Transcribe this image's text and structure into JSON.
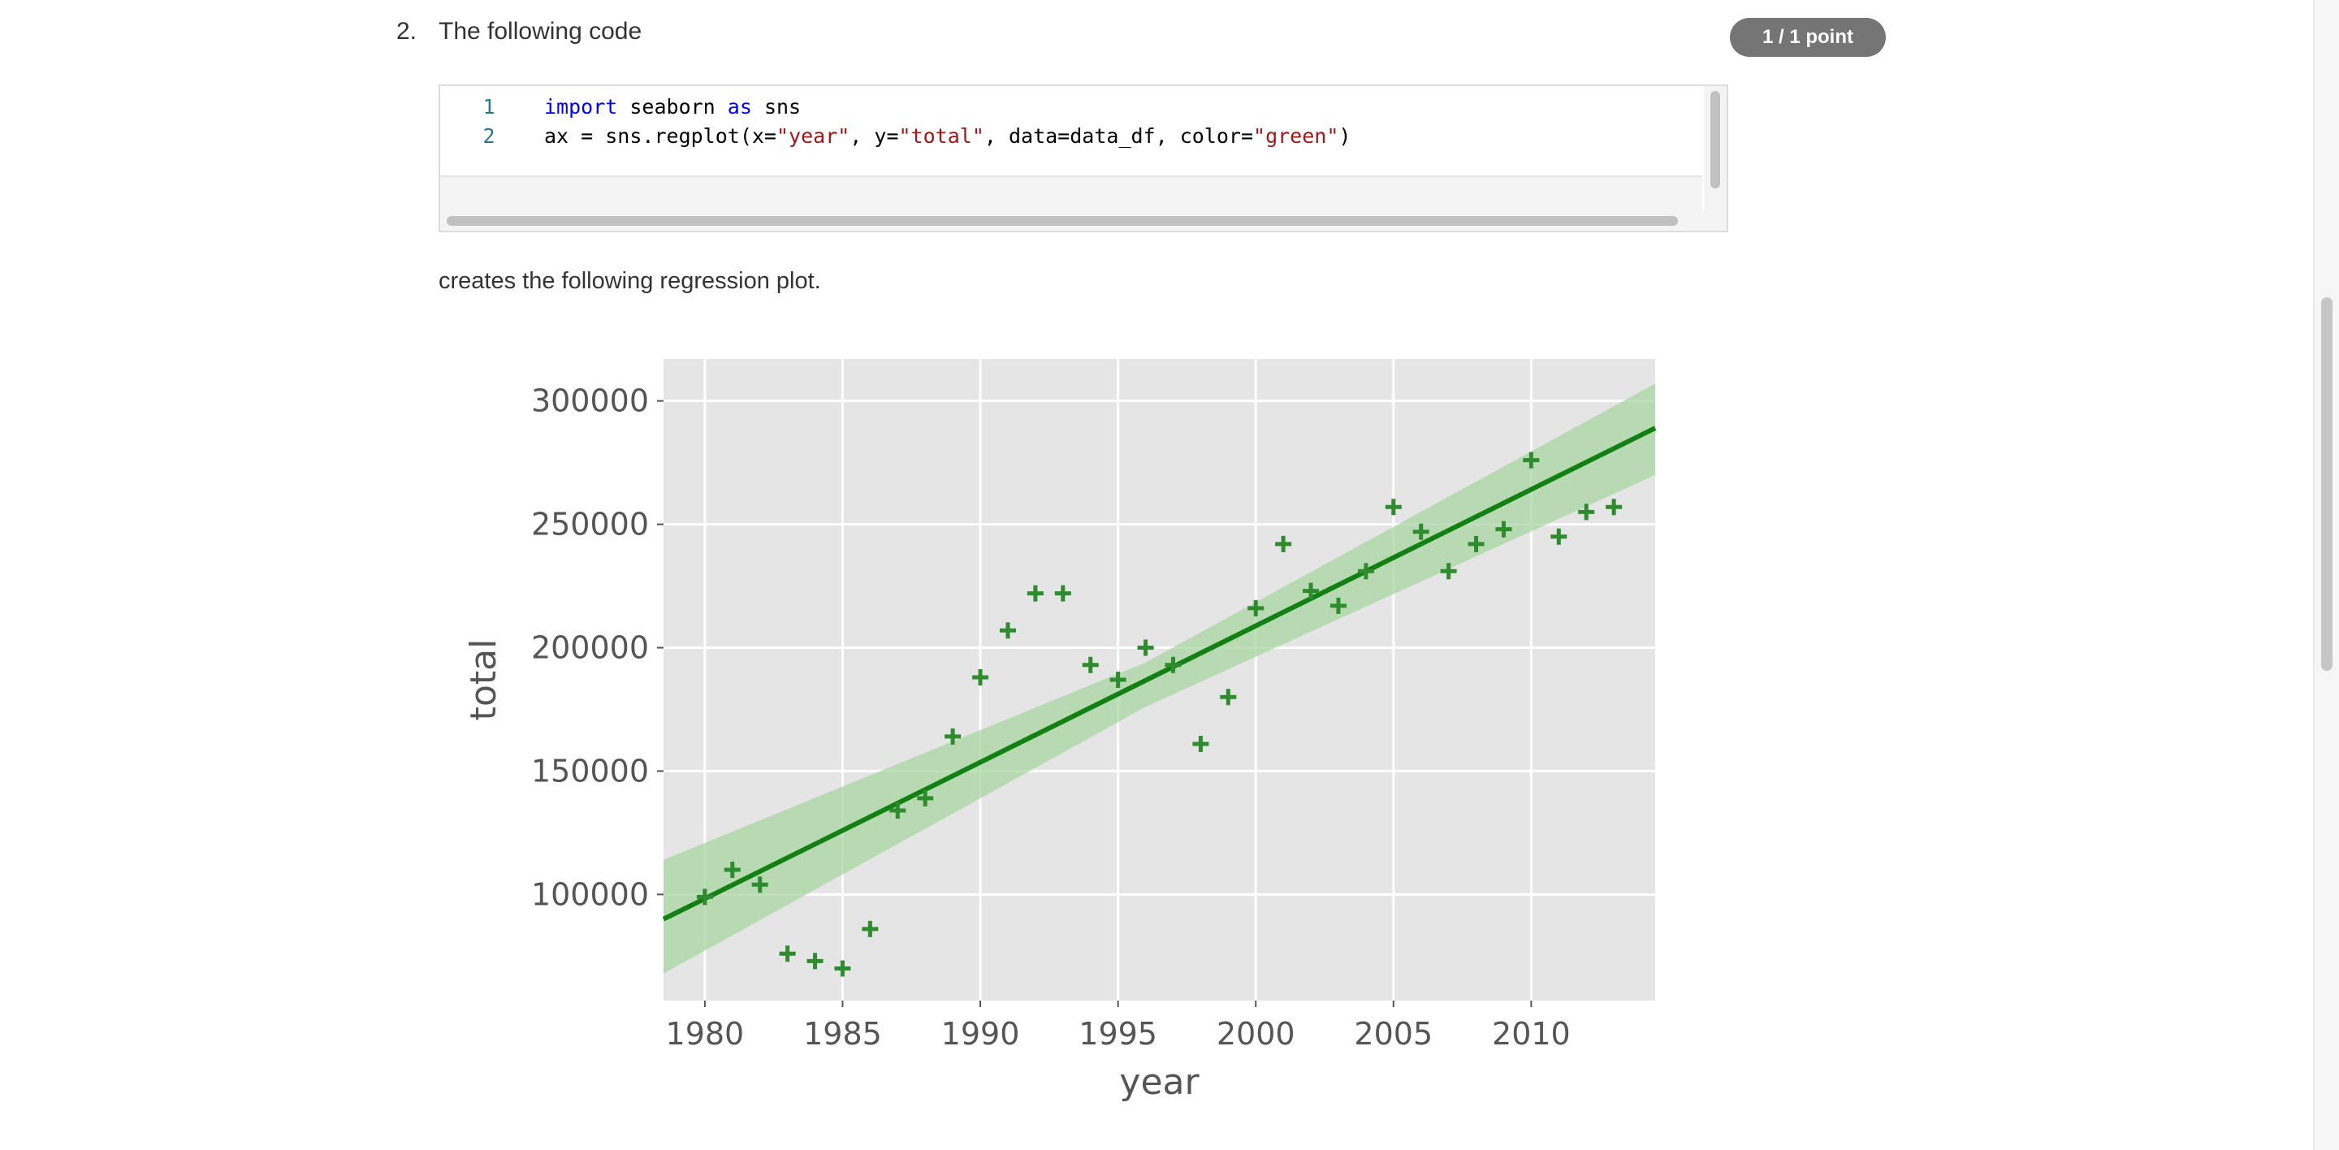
{
  "question": {
    "number": "2.",
    "title": "The following code",
    "score": "1 / 1 point",
    "caption": "creates the following regression plot."
  },
  "code": {
    "lines": [
      {
        "num": "1",
        "tokens": [
          {
            "t": "import",
            "c": "kw"
          },
          {
            "t": " seaborn ",
            "c": ""
          },
          {
            "t": "as",
            "c": "kw"
          },
          {
            "t": " sns",
            "c": ""
          }
        ]
      },
      {
        "num": "2",
        "tokens": [
          {
            "t": "ax = sns.regplot(x=",
            "c": ""
          },
          {
            "t": "\"year\"",
            "c": "str"
          },
          {
            "t": ", y=",
            "c": ""
          },
          {
            "t": "\"total\"",
            "c": "str"
          },
          {
            "t": ", data=data_df, color=",
            "c": ""
          },
          {
            "t": "\"green\"",
            "c": "str"
          },
          {
            "t": ")",
            "c": ""
          }
        ]
      }
    ]
  },
  "chart_data": {
    "type": "scatter",
    "xlabel": "year",
    "ylabel": "total",
    "xlim": [
      1978.5,
      2014.5
    ],
    "ylim": [
      57000,
      317000
    ],
    "xticks": [
      1980,
      1985,
      1990,
      1995,
      2000,
      2005,
      2010
    ],
    "yticks": [
      100000,
      150000,
      200000,
      250000,
      300000
    ],
    "marker": "+",
    "color": "#2e8b2e",
    "line_color": "#138013",
    "band_color": "#a8d5a2",
    "grid": true,
    "background": "#e5e5e5",
    "points": [
      {
        "x": 1980,
        "y": 99000
      },
      {
        "x": 1981,
        "y": 110000
      },
      {
        "x": 1982,
        "y": 104000
      },
      {
        "x": 1983,
        "y": 76000
      },
      {
        "x": 1984,
        "y": 73000
      },
      {
        "x": 1985,
        "y": 70000
      },
      {
        "x": 1986,
        "y": 86000
      },
      {
        "x": 1987,
        "y": 134000
      },
      {
        "x": 1988,
        "y": 139000
      },
      {
        "x": 1989,
        "y": 164000
      },
      {
        "x": 1990,
        "y": 188000
      },
      {
        "x": 1991,
        "y": 207000
      },
      {
        "x": 1992,
        "y": 222000
      },
      {
        "x": 1993,
        "y": 222000
      },
      {
        "x": 1994,
        "y": 193000
      },
      {
        "x": 1995,
        "y": 187000
      },
      {
        "x": 1996,
        "y": 200000
      },
      {
        "x": 1997,
        "y": 193000
      },
      {
        "x": 1998,
        "y": 161000
      },
      {
        "x": 1999,
        "y": 180000
      },
      {
        "x": 2000,
        "y": 216000
      },
      {
        "x": 2001,
        "y": 242000
      },
      {
        "x": 2002,
        "y": 223000
      },
      {
        "x": 2003,
        "y": 217000
      },
      {
        "x": 2004,
        "y": 231000
      },
      {
        "x": 2005,
        "y": 257000
      },
      {
        "x": 2006,
        "y": 247000
      },
      {
        "x": 2007,
        "y": 231000
      },
      {
        "x": 2008,
        "y": 242000
      },
      {
        "x": 2009,
        "y": 248000
      },
      {
        "x": 2010,
        "y": 276000
      },
      {
        "x": 2011,
        "y": 245000
      },
      {
        "x": 2012,
        "y": 255000
      },
      {
        "x": 2013,
        "y": 257000
      }
    ],
    "regression_line": {
      "x": [
        1978.5,
        2014.5
      ],
      "y": [
        90000,
        289000
      ]
    },
    "confidence_band": {
      "x": [
        1978.5,
        1996,
        2014.5
      ],
      "upper": [
        114000,
        194000,
        307000
      ],
      "lower": [
        68000,
        176000,
        270000
      ]
    }
  }
}
